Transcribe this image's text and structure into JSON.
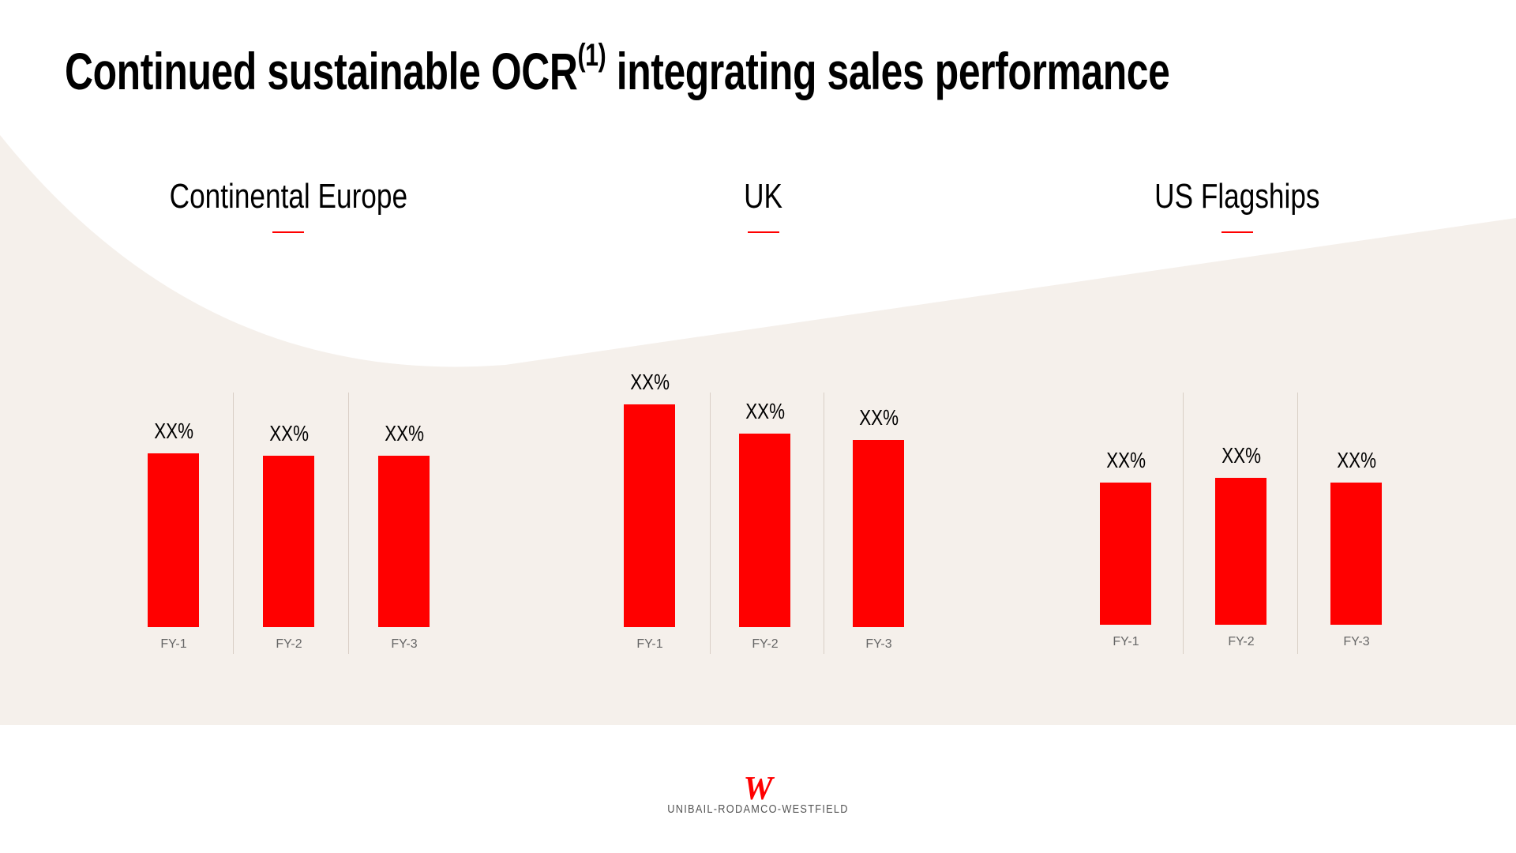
{
  "title": {
    "main": "Continued sustainable OCR",
    "superscript": "(1)",
    "rest": " integrating sales performance"
  },
  "colors": {
    "accent": "#ff0000",
    "background_band": "#f5f0eb",
    "text": "#000000"
  },
  "logo": {
    "mark": "W",
    "text": "UNIBAIL-RODAMCO-WESTFIELD"
  },
  "chart_data": [
    {
      "type": "bar",
      "title": "Continental Europe",
      "categories": [
        "FY-1",
        "FY-2",
        "FY-3"
      ],
      "data_labels": [
        "XX%",
        "XX%",
        "XX%"
      ],
      "values": [
        78,
        77,
        77
      ],
      "ylim": [
        0,
        100
      ],
      "grid": false
    },
    {
      "type": "bar",
      "title": "UK",
      "categories": [
        "FY-1",
        "FY-2",
        "FY-3"
      ],
      "data_labels": [
        "XX%",
        "XX%",
        "XX%"
      ],
      "values": [
        100,
        87,
        84
      ],
      "ylim": [
        0,
        100
      ],
      "grid": false
    },
    {
      "type": "bar",
      "title": "US Flagships",
      "categories": [
        "FY-1",
        "FY-2",
        "FY-3"
      ],
      "data_labels": [
        "XX%",
        "XX%",
        "XX%"
      ],
      "values": [
        64,
        66,
        64
      ],
      "ylim": [
        0,
        100
      ],
      "grid": false
    }
  ]
}
